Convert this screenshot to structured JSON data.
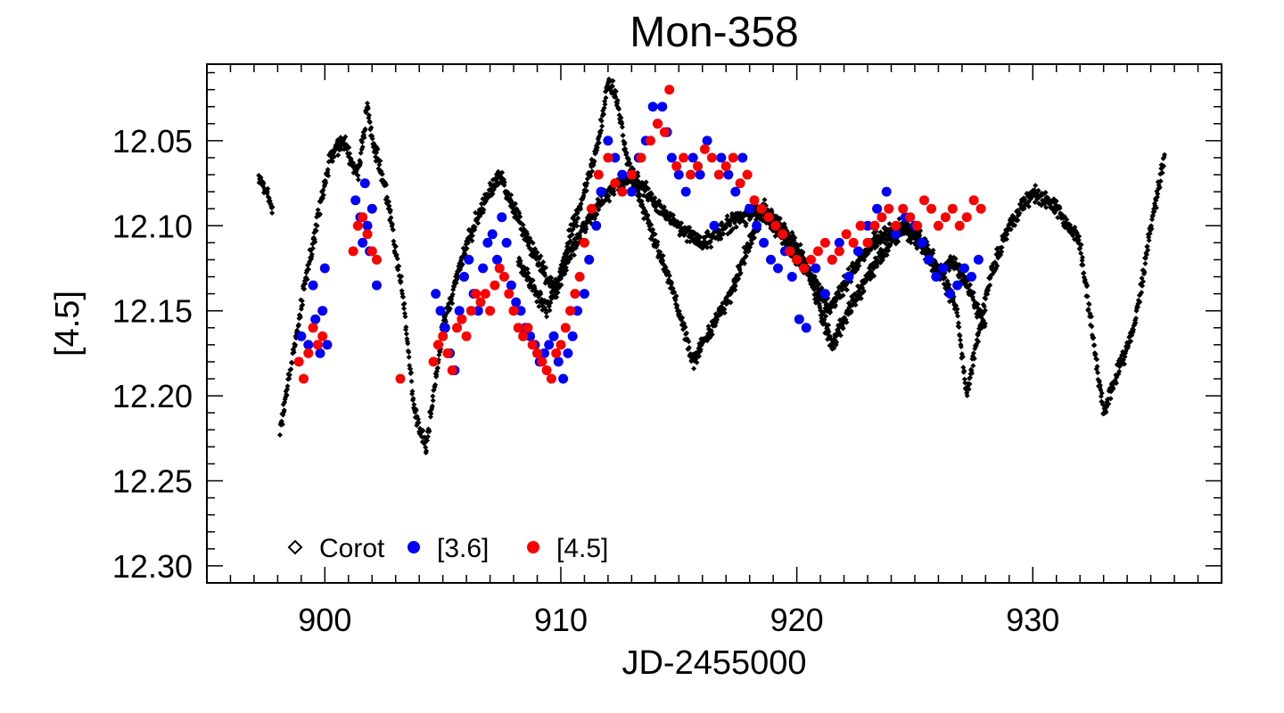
{
  "chart_data": {
    "type": "scatter",
    "title": "Mon-358",
    "xlabel": "JD-2455000",
    "ylabel": "[4.5]",
    "xlim": [
      895,
      938
    ],
    "ylim": [
      12.005,
      12.31
    ],
    "y_inverted": true,
    "xticks": [
      900,
      910,
      920,
      930
    ],
    "xtick_labels": [
      "900",
      "910",
      "920",
      "930"
    ],
    "yticks": [
      12.05,
      12.1,
      12.15,
      12.2,
      12.25,
      12.3
    ],
    "ytick_labels": [
      "12.05",
      "12.10",
      "12.15",
      "12.20",
      "12.25",
      "12.30"
    ],
    "legend_position": "bottom-left",
    "series": [
      {
        "name": "Corot",
        "marker": "diamond",
        "color": "#000000",
        "segments": [
          {
            "x": [
              897.2,
              897.8
            ],
            "y": [
              12.07,
              12.09
            ]
          },
          {
            "x": [
              898.1,
              898.6,
              899.2,
              899.8,
              900.2,
              900.8,
              901.4,
              901.8,
              902.0,
              902.6,
              903.3,
              903.8,
              904.3,
              905.0,
              906.0,
              907.0,
              907.4,
              908.0,
              909.0,
              909.8,
              910.3,
              911.0,
              911.6,
              912.0,
              912.3,
              912.8,
              913.5,
              914.3,
              915.0,
              915.6,
              916.4,
              917.2,
              918.0,
              918.6,
              919.4,
              920.3,
              921.0,
              921.5,
              922.2,
              923.0,
              924.0,
              924.6,
              925.4,
              926.2,
              926.8,
              927.2,
              927.6,
              928.2,
              929.0,
              930.0,
              931.0,
              932.0,
              932.5,
              933.0,
              933.5,
              934.3,
              935.0,
              935.6
            ],
            "y": [
              12.22,
              12.18,
              12.13,
              12.09,
              12.06,
              12.05,
              12.07,
              12.03,
              12.05,
              12.08,
              12.14,
              12.21,
              12.23,
              12.16,
              12.11,
              12.08,
              12.07,
              12.09,
              12.12,
              12.14,
              12.11,
              12.08,
              12.05,
              12.015,
              12.02,
              12.06,
              12.09,
              12.12,
              12.15,
              12.18,
              12.16,
              12.14,
              12.11,
              12.09,
              12.1,
              12.12,
              12.15,
              12.17,
              12.15,
              12.13,
              12.11,
              12.1,
              12.11,
              12.13,
              12.15,
              12.2,
              12.17,
              12.13,
              12.1,
              12.08,
              12.09,
              12.11,
              12.16,
              12.21,
              12.19,
              12.16,
              12.1,
              12.06
            ]
          },
          {
            "x": [
              908.2,
              909.4,
              910.6,
              912.0,
              913.0,
              914.2,
              915.0,
              916.0,
              917.0,
              918.4,
              919.6,
              920.6,
              921.4,
              922.2,
              923.2,
              924.4,
              925.2,
              926.0,
              926.6,
              927.4,
              928.0
            ],
            "y": [
              12.12,
              12.15,
              12.11,
              12.08,
              12.07,
              12.09,
              12.1,
              12.11,
              12.1,
              12.09,
              12.11,
              12.13,
              12.15,
              12.13,
              12.11,
              12.1,
              12.11,
              12.13,
              12.12,
              12.14,
              12.16
            ]
          }
        ]
      },
      {
        "name": "[3.6]",
        "marker": "circle",
        "color": "#0000ff",
        "x": [
          899.0,
          899.3,
          899.5,
          899.6,
          899.8,
          899.9,
          900.0,
          900.1,
          901.3,
          901.5,
          901.6,
          901.7,
          901.8,
          901.9,
          902.0,
          902.2,
          904.7,
          904.9,
          905.1,
          905.3,
          905.5,
          905.7,
          905.9,
          906.1,
          906.3,
          906.5,
          906.7,
          906.9,
          907.1,
          907.3,
          907.5,
          907.7,
          907.9,
          908.1,
          908.3,
          908.5,
          908.7,
          908.9,
          909.1,
          909.3,
          909.5,
          909.7,
          909.9,
          910.1,
          910.3,
          910.5,
          910.7,
          911.0,
          911.2,
          911.5,
          911.7,
          912.0,
          912.3,
          912.6,
          913.0,
          913.3,
          913.6,
          913.9,
          914.1,
          914.3,
          914.5,
          914.7,
          915.0,
          915.3,
          915.6,
          915.9,
          916.2,
          916.5,
          916.8,
          917.1,
          917.4,
          917.7,
          918.0,
          918.3,
          918.6,
          918.9,
          919.2,
          919.5,
          919.8,
          920.1,
          920.4,
          920.8,
          921.2,
          921.5,
          921.8,
          922.2,
          922.6,
          923.0,
          923.4,
          923.8,
          924.2,
          924.6,
          925.0,
          925.3,
          925.6,
          925.9,
          926.2,
          926.5,
          926.8,
          927.1,
          927.4,
          927.7
        ],
        "y": [
          12.165,
          12.17,
          12.135,
          12.155,
          12.175,
          12.15,
          12.125,
          12.17,
          12.085,
          12.095,
          12.11,
          12.075,
          12.1,
          12.115,
          12.09,
          12.135,
          12.14,
          12.15,
          12.16,
          12.175,
          12.185,
          12.15,
          12.13,
          12.12,
          12.14,
          12.15,
          12.125,
          12.11,
          12.105,
          12.12,
          12.095,
          12.11,
          12.135,
          12.145,
          12.15,
          12.16,
          12.165,
          12.17,
          12.18,
          12.175,
          12.17,
          12.165,
          12.18,
          12.19,
          12.175,
          12.165,
          12.15,
          12.14,
          12.12,
          12.1,
          12.08,
          12.05,
          12.06,
          12.07,
          12.08,
          12.06,
          12.05,
          12.03,
          12.04,
          12.03,
          12.045,
          12.06,
          12.07,
          12.08,
          12.06,
          12.07,
          12.05,
          12.1,
          12.06,
          12.07,
          12.08,
          12.06,
          12.09,
          12.1,
          12.11,
          12.12,
          12.125,
          12.115,
          12.13,
          12.155,
          12.16,
          12.125,
          12.14,
          12.12,
          12.11,
          12.13,
          12.115,
          12.1,
          12.09,
          12.08,
          12.105,
          12.095,
          12.1,
          12.11,
          12.12,
          12.13,
          12.125,
          12.14,
          12.135,
          12.125,
          12.13,
          12.12
        ]
      },
      {
        "name": "[4.5]",
        "marker": "circle",
        "color": "#ff0000",
        "x": [
          898.9,
          899.1,
          899.3,
          899.5,
          899.7,
          899.9,
          901.2,
          901.4,
          901.6,
          901.8,
          902.0,
          902.2,
          903.2,
          904.6,
          904.8,
          905.0,
          905.2,
          905.4,
          905.6,
          905.8,
          906.0,
          906.2,
          906.4,
          906.6,
          906.8,
          907.0,
          907.2,
          907.4,
          907.6,
          907.8,
          908.0,
          908.2,
          908.4,
          908.6,
          908.8,
          909.0,
          909.2,
          909.4,
          909.6,
          909.8,
          910.0,
          910.2,
          910.4,
          910.6,
          910.8,
          911.0,
          911.3,
          911.6,
          912.0,
          912.3,
          912.6,
          913.0,
          913.4,
          913.8,
          914.1,
          914.4,
          914.6,
          914.9,
          915.2,
          915.5,
          915.8,
          916.1,
          916.4,
          916.7,
          917.0,
          917.3,
          917.6,
          917.9,
          918.2,
          918.5,
          918.8,
          919.1,
          919.4,
          919.7,
          920.0,
          920.3,
          920.6,
          920.9,
          921.2,
          921.5,
          921.8,
          922.1,
          922.4,
          922.7,
          923.0,
          923.3,
          923.6,
          923.9,
          924.2,
          924.5,
          924.8,
          925.1,
          925.4,
          925.7,
          926.0,
          926.3,
          926.6,
          926.9,
          927.2,
          927.5,
          927.8
        ],
        "y": [
          12.18,
          12.19,
          12.175,
          12.16,
          12.17,
          12.165,
          12.115,
          12.1,
          12.095,
          12.105,
          12.115,
          12.12,
          12.19,
          12.18,
          12.17,
          12.165,
          12.175,
          12.185,
          12.16,
          12.155,
          12.165,
          12.15,
          12.14,
          12.145,
          12.14,
          12.15,
          12.135,
          12.125,
          12.13,
          12.14,
          12.15,
          12.16,
          12.165,
          12.16,
          12.17,
          12.175,
          12.18,
          12.185,
          12.19,
          12.175,
          12.17,
          12.16,
          12.15,
          12.14,
          12.13,
          12.11,
          12.09,
          12.07,
          12.06,
          12.075,
          12.08,
          12.07,
          12.06,
          12.05,
          12.04,
          12.045,
          12.02,
          12.065,
          12.06,
          12.07,
          12.065,
          12.055,
          12.06,
          12.07,
          12.065,
          12.06,
          12.075,
          12.07,
          12.085,
          12.09,
          12.095,
          12.1,
          12.105,
          12.115,
          12.12,
          12.125,
          12.12,
          12.115,
          12.11,
          12.12,
          12.115,
          12.105,
          12.11,
          12.1,
          12.11,
          12.1,
          12.095,
          12.09,
          12.1,
          12.09,
          12.095,
          12.1,
          12.085,
          12.09,
          12.1,
          12.095,
          12.09,
          12.1,
          12.095,
          12.085,
          12.09
        ]
      }
    ],
    "legend": [
      {
        "label": "Corot",
        "color": "#000000"
      },
      {
        "label": "[3.6]",
        "color": "#0000ff"
      },
      {
        "label": "[4.5]",
        "color": "#ff0000"
      }
    ]
  }
}
